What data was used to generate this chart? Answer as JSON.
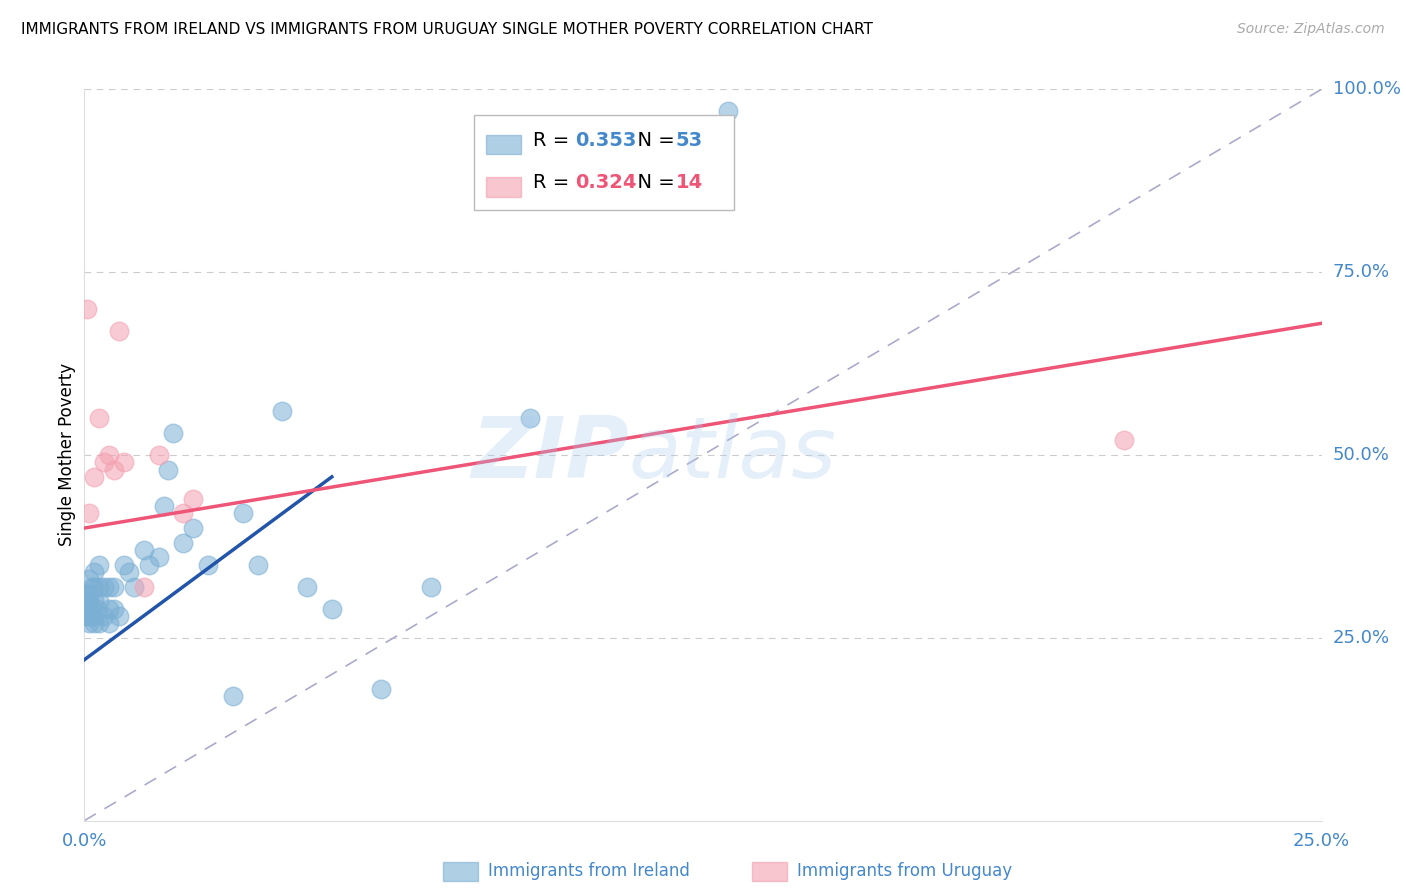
{
  "title": "IMMIGRANTS FROM IRELAND VS IMMIGRANTS FROM URUGUAY SINGLE MOTHER POVERTY CORRELATION CHART",
  "source": "Source: ZipAtlas.com",
  "xlabel_bottom": [
    "Immigrants from Ireland",
    "Immigrants from Uruguay"
  ],
  "ylabel": "Single Mother Poverty",
  "xlim": [
    0.0,
    0.25
  ],
  "ylim": [
    0.0,
    1.0
  ],
  "x_tick_positions": [
    0.0,
    0.05,
    0.1,
    0.15,
    0.2,
    0.25
  ],
  "x_tick_labels": [
    "0.0%",
    "",
    "",
    "",
    "",
    "25.0%"
  ],
  "y_tick_labels_right": [
    "25.0%",
    "50.0%",
    "75.0%",
    "100.0%"
  ],
  "y_ticks_right": [
    0.25,
    0.5,
    0.75,
    1.0
  ],
  "ireland_R": 0.353,
  "ireland_N": 53,
  "uruguay_R": 0.324,
  "uruguay_N": 14,
  "ireland_color": "#7BAFD4",
  "ireland_color_dark": "#2255AA",
  "uruguay_color": "#F4A0B0",
  "uruguay_color_dark": "#EE5577",
  "ireland_scatter_x": [
    0.0005,
    0.0005,
    0.0005,
    0.0005,
    0.0007,
    0.001,
    0.001,
    0.001,
    0.001,
    0.001,
    0.0015,
    0.0015,
    0.0015,
    0.002,
    0.002,
    0.002,
    0.002,
    0.002,
    0.0025,
    0.003,
    0.003,
    0.003,
    0.003,
    0.004,
    0.004,
    0.005,
    0.005,
    0.005,
    0.006,
    0.006,
    0.007,
    0.008,
    0.009,
    0.01,
    0.012,
    0.013,
    0.015,
    0.016,
    0.017,
    0.018,
    0.02,
    0.022,
    0.025,
    0.03,
    0.032,
    0.035,
    0.04,
    0.045,
    0.05,
    0.06,
    0.07,
    0.09,
    0.13
  ],
  "ireland_scatter_y": [
    0.28,
    0.29,
    0.3,
    0.31,
    0.3,
    0.27,
    0.28,
    0.3,
    0.31,
    0.33,
    0.28,
    0.29,
    0.32,
    0.27,
    0.28,
    0.3,
    0.32,
    0.34,
    0.29,
    0.27,
    0.3,
    0.32,
    0.35,
    0.28,
    0.32,
    0.27,
    0.29,
    0.32,
    0.29,
    0.32,
    0.28,
    0.35,
    0.34,
    0.32,
    0.37,
    0.35,
    0.36,
    0.43,
    0.48,
    0.53,
    0.38,
    0.4,
    0.35,
    0.17,
    0.42,
    0.35,
    0.56,
    0.32,
    0.29,
    0.18,
    0.32,
    0.55,
    0.97
  ],
  "uruguay_scatter_x": [
    0.0005,
    0.001,
    0.002,
    0.003,
    0.004,
    0.005,
    0.006,
    0.007,
    0.008,
    0.012,
    0.015,
    0.02,
    0.022,
    0.21
  ],
  "uruguay_scatter_y": [
    0.7,
    0.42,
    0.47,
    0.55,
    0.49,
    0.5,
    0.48,
    0.67,
    0.49,
    0.32,
    0.5,
    0.42,
    0.44,
    0.52
  ],
  "dashed_line_x": [
    0.0,
    0.25
  ],
  "dashed_line_y": [
    0.0,
    1.0
  ],
  "ireland_trend_x": [
    0.0,
    0.05
  ],
  "ireland_trend_y": [
    0.22,
    0.47
  ],
  "uruguay_trend_x": [
    0.0,
    0.25
  ],
  "uruguay_trend_y": [
    0.4,
    0.68
  ],
  "watermark_zip": "ZIP",
  "watermark_atlas": "atlas",
  "background_color": "#FFFFFF",
  "grid_color": "#CCCCCC",
  "title_fontsize": 11,
  "tick_label_color": "#4488CC"
}
